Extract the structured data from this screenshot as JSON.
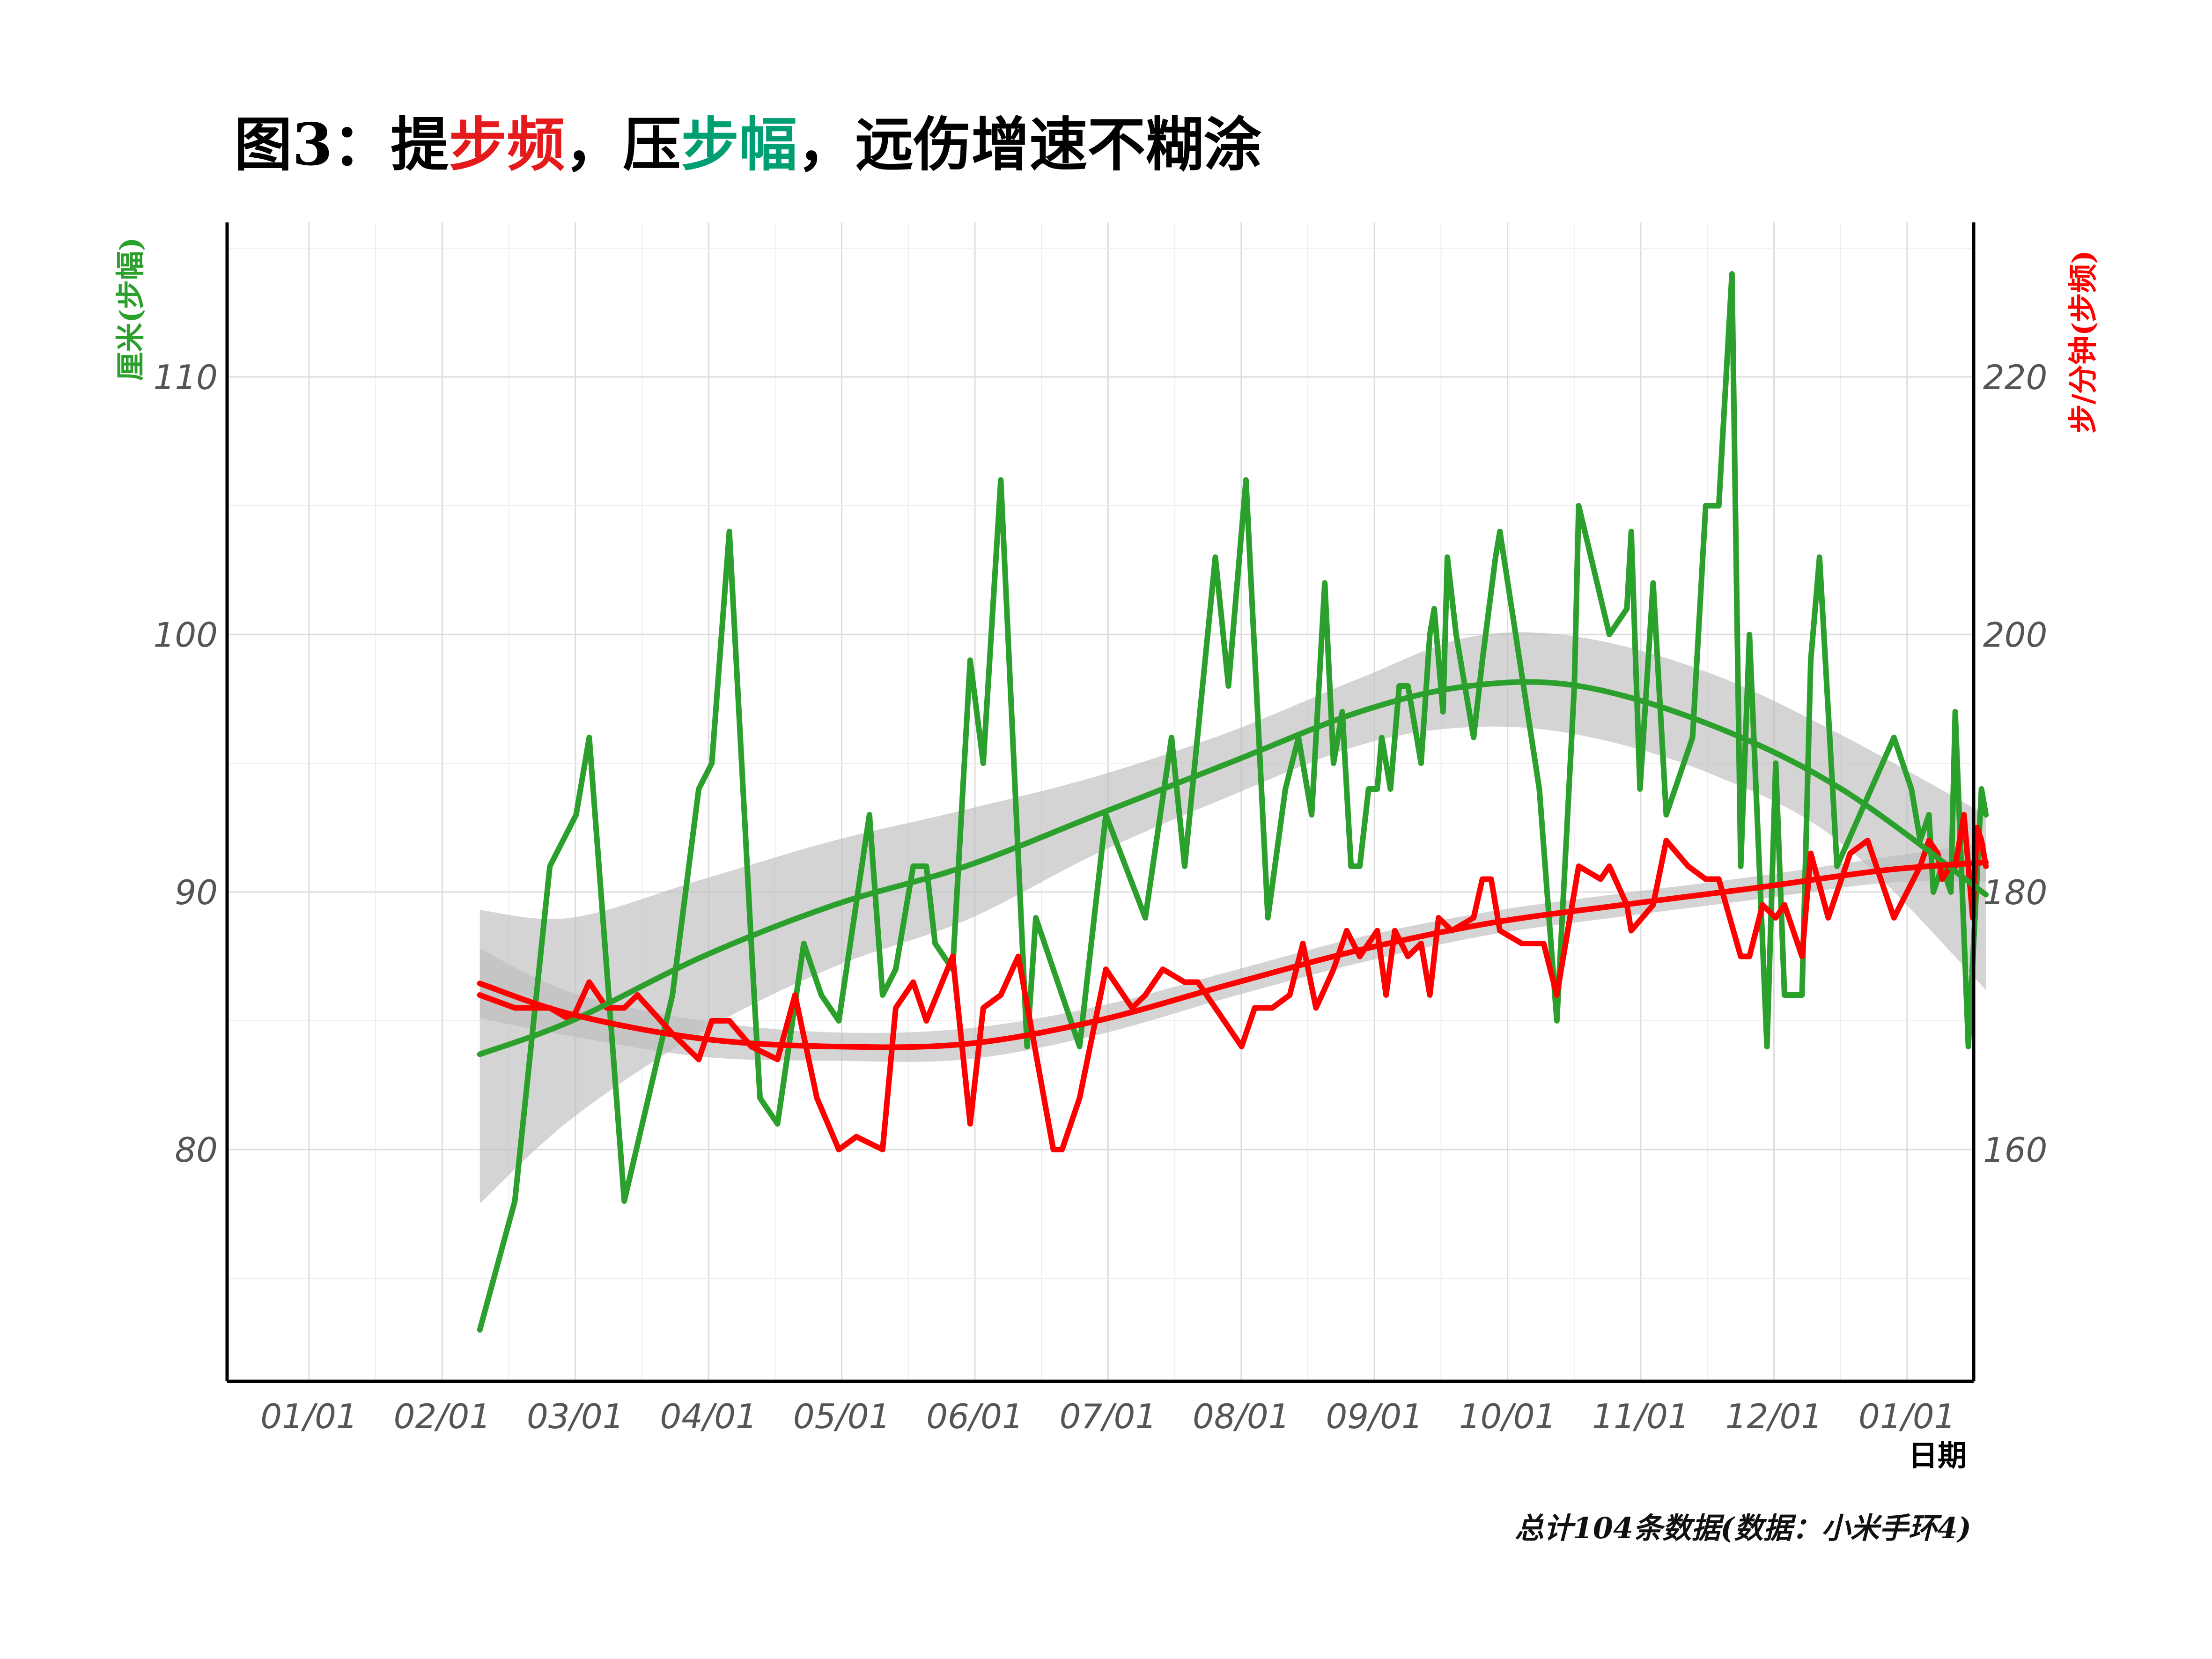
{
  "title": {
    "prefix": "图3：提",
    "freq_word": "步频",
    "mid": "，压",
    "stride_word": "步幅",
    "suffix": "，远伤增速不糊涂"
  },
  "caption": "总计104条数据(数据：小米手环4)",
  "colors": {
    "stride": "#2ca02c",
    "cadence": "#ff0000",
    "band": "#bdbdbd",
    "title_freq": "#e41a1c",
    "title_stride": "#009e73",
    "grid": "#dddddd",
    "axis": "#000000"
  },
  "chart_data": {
    "type": "line",
    "xlabel": "日期",
    "ylabel_left": "厘米(步幅)",
    "ylabel_right": "步/分钟(步频)",
    "x_ticks": [
      "01/01",
      "02/01",
      "03/01",
      "04/01",
      "05/01",
      "06/01",
      "07/01",
      "08/01",
      "09/01",
      "10/01",
      "11/01",
      "12/01",
      "01/01"
    ],
    "y_left": {
      "ticks": [
        80,
        90,
        100,
        110
      ],
      "range": [
        71,
        116
      ]
    },
    "y_right": {
      "ticks": [
        160,
        180,
        200,
        220
      ],
      "range": [
        142,
        232
      ]
    },
    "grid": true,
    "series": [
      {
        "name": "厘米(步幅)",
        "axis": "left",
        "points": [
          [
            39,
            73
          ],
          [
            47,
            78
          ],
          [
            55,
            91
          ],
          [
            61,
            93
          ],
          [
            64,
            96
          ],
          [
            68,
            87
          ],
          [
            72,
            78
          ],
          [
            83,
            86
          ],
          [
            89,
            94
          ],
          [
            92,
            95
          ],
          [
            96,
            104
          ],
          [
            101,
            88
          ],
          [
            103,
            82
          ],
          [
            107,
            81
          ],
          [
            113,
            88
          ],
          [
            117,
            86
          ],
          [
            121,
            85
          ],
          [
            128,
            93
          ],
          [
            131,
            86
          ],
          [
            134,
            87
          ],
          [
            138,
            91
          ],
          [
            141,
            91
          ],
          [
            143,
            88
          ],
          [
            147,
            87
          ],
          [
            151,
            99
          ],
          [
            154,
            95
          ],
          [
            158,
            106
          ],
          [
            164,
            84
          ],
          [
            166,
            89
          ],
          [
            172,
            86
          ],
          [
            176,
            84
          ],
          [
            182,
            93
          ],
          [
            191,
            89
          ],
          [
            197,
            96
          ],
          [
            200,
            91
          ],
          [
            207,
            103
          ],
          [
            210,
            98
          ],
          [
            214,
            106
          ],
          [
            219,
            89
          ],
          [
            223,
            94
          ],
          [
            226,
            96
          ],
          [
            229,
            93
          ],
          [
            232,
            102
          ],
          [
            234,
            95
          ],
          [
            236,
            97
          ],
          [
            238,
            91
          ],
          [
            240,
            91
          ],
          [
            242,
            94
          ],
          [
            244,
            94
          ],
          [
            245,
            96
          ],
          [
            247,
            94
          ],
          [
            249,
            98
          ],
          [
            251,
            98
          ],
          [
            254,
            95
          ],
          [
            256,
            100
          ],
          [
            257,
            101
          ],
          [
            259,
            97
          ],
          [
            260,
            103
          ],
          [
            262,
            100
          ],
          [
            266,
            96
          ],
          [
            268,
            99
          ],
          [
            271,
            103
          ],
          [
            272,
            104
          ],
          [
            281,
            94
          ],
          [
            285,
            85
          ],
          [
            289,
            98
          ],
          [
            290,
            105
          ],
          [
            297,
            100
          ],
          [
            301,
            101
          ],
          [
            302,
            104
          ],
          [
            304,
            94
          ],
          [
            307,
            102
          ],
          [
            310,
            93
          ],
          [
            316,
            96
          ],
          [
            319,
            105
          ],
          [
            322,
            105
          ],
          [
            325,
            114
          ],
          [
            327,
            91
          ],
          [
            329,
            100
          ],
          [
            333,
            84
          ],
          [
            335,
            95
          ],
          [
            337,
            86
          ],
          [
            341,
            86
          ],
          [
            343,
            99
          ],
          [
            345,
            103
          ],
          [
            349,
            91
          ],
          [
            362,
            96
          ],
          [
            366,
            94
          ],
          [
            368,
            92
          ],
          [
            370,
            93
          ],
          [
            371,
            90
          ],
          [
            373,
            91
          ],
          [
            375,
            90
          ],
          [
            376,
            97
          ],
          [
            379,
            84
          ],
          [
            382,
            94
          ],
          [
            383,
            93
          ]
        ],
        "trend": [
          [
            39,
            83.7
          ],
          [
            60,
            85.0
          ],
          [
            90,
            87.5
          ],
          [
            120,
            89.5
          ],
          [
            150,
            91.0
          ],
          [
            180,
            93.0
          ],
          [
            210,
            95.0
          ],
          [
            240,
            97.0
          ],
          [
            265,
            98.0
          ],
          [
            290,
            98.0
          ],
          [
            320,
            96.5
          ],
          [
            350,
            94.0
          ],
          [
            383,
            89.9
          ]
        ],
        "band_upper": [
          [
            39,
            89.3
          ],
          [
            60,
            89.0
          ],
          [
            90,
            90.5
          ],
          [
            120,
            92.0
          ],
          [
            150,
            93.2
          ],
          [
            180,
            94.5
          ],
          [
            210,
            96.2
          ],
          [
            240,
            98.3
          ],
          [
            265,
            99.9
          ],
          [
            290,
            99.9
          ],
          [
            320,
            98.5
          ],
          [
            350,
            96.1
          ],
          [
            383,
            93.0
          ]
        ],
        "band_lower": [
          [
            39,
            77.9
          ],
          [
            60,
            81.2
          ],
          [
            90,
            84.6
          ],
          [
            120,
            87.1
          ],
          [
            150,
            88.9
          ],
          [
            180,
            91.5
          ],
          [
            210,
            93.7
          ],
          [
            240,
            95.7
          ],
          [
            265,
            96.4
          ],
          [
            290,
            96.1
          ],
          [
            320,
            94.6
          ],
          [
            350,
            91.9
          ],
          [
            383,
            86.2
          ]
        ]
      },
      {
        "name": "步/分钟(步频)",
        "axis": "right",
        "points": [
          [
            39,
            172
          ],
          [
            47,
            171
          ],
          [
            55,
            171
          ],
          [
            60,
            170
          ],
          [
            64,
            173
          ],
          [
            68,
            171
          ],
          [
            72,
            171
          ],
          [
            75,
            172
          ],
          [
            83,
            169
          ],
          [
            89,
            167
          ],
          [
            92,
            170
          ],
          [
            96,
            170
          ],
          [
            101,
            168
          ],
          [
            107,
            167
          ],
          [
            111,
            172
          ],
          [
            116,
            164
          ],
          [
            121,
            160
          ],
          [
            125,
            161
          ],
          [
            131,
            160
          ],
          [
            134,
            171
          ],
          [
            138,
            173
          ],
          [
            141,
            170
          ],
          [
            147,
            175
          ],
          [
            151,
            162
          ],
          [
            154,
            171
          ],
          [
            158,
            172
          ],
          [
            162,
            175
          ],
          [
            170,
            160
          ],
          [
            172,
            160
          ],
          [
            176,
            164
          ],
          [
            182,
            174
          ],
          [
            188,
            171
          ],
          [
            191,
            172
          ],
          [
            195,
            174
          ],
          [
            200,
            173
          ],
          [
            203,
            173
          ],
          [
            213,
            168
          ],
          [
            216,
            171
          ],
          [
            220,
            171
          ],
          [
            224,
            172
          ],
          [
            227,
            176
          ],
          [
            230,
            171
          ],
          [
            234,
            174
          ],
          [
            237,
            177
          ],
          [
            240,
            175
          ],
          [
            244,
            177
          ],
          [
            246,
            172
          ],
          [
            248,
            177
          ],
          [
            251,
            175
          ],
          [
            254,
            176
          ],
          [
            256,
            172
          ],
          [
            258,
            178
          ],
          [
            261,
            177
          ],
          [
            266,
            178
          ],
          [
            268,
            181
          ],
          [
            270,
            181
          ],
          [
            272,
            177
          ],
          [
            277,
            176
          ],
          [
            282,
            176
          ],
          [
            285,
            172
          ],
          [
            290,
            182
          ],
          [
            295,
            181
          ],
          [
            297,
            182
          ],
          [
            301,
            179
          ],
          [
            302,
            177
          ],
          [
            307,
            179
          ],
          [
            310,
            184
          ],
          [
            315,
            182
          ],
          [
            319,
            181
          ],
          [
            322,
            181
          ],
          [
            327,
            175
          ],
          [
            329,
            175
          ],
          [
            332,
            179
          ],
          [
            335,
            178
          ],
          [
            337,
            179
          ],
          [
            341,
            175
          ],
          [
            343,
            183
          ],
          [
            347,
            178
          ],
          [
            352,
            183
          ],
          [
            356,
            184
          ],
          [
            362,
            178
          ],
          [
            368,
            182
          ],
          [
            370,
            184
          ],
          [
            372,
            183
          ],
          [
            373,
            181
          ],
          [
            375,
            182
          ],
          [
            376,
            182
          ],
          [
            378,
            186
          ],
          [
            380,
            178
          ],
          [
            381,
            185
          ],
          [
            382,
            184
          ],
          [
            383,
            182
          ]
        ],
        "trend": [
          [
            39,
            172.9
          ],
          [
            60,
            170.5
          ],
          [
            90,
            168.6
          ],
          [
            120,
            168.0
          ],
          [
            150,
            168.2
          ],
          [
            180,
            170.0
          ],
          [
            210,
            172.8
          ],
          [
            240,
            175.5
          ],
          [
            270,
            177.6
          ],
          [
            300,
            179.0
          ],
          [
            330,
            180.3
          ],
          [
            360,
            181.7
          ],
          [
            383,
            182.3
          ]
        ],
        "band_upper": [
          [
            39,
            175.6
          ],
          [
            60,
            172.2
          ],
          [
            90,
            170.0
          ],
          [
            120,
            169.1
          ],
          [
            150,
            169.4
          ],
          [
            180,
            171.1
          ],
          [
            210,
            173.8
          ],
          [
            240,
            176.5
          ],
          [
            270,
            178.5
          ],
          [
            300,
            179.9
          ],
          [
            330,
            181.2
          ],
          [
            360,
            182.7
          ],
          [
            383,
            183.8
          ]
        ],
        "band_lower": [
          [
            39,
            170.2
          ],
          [
            60,
            168.8
          ],
          [
            90,
            167.2
          ],
          [
            120,
            166.9
          ],
          [
            150,
            167.0
          ],
          [
            180,
            168.9
          ],
          [
            210,
            171.8
          ],
          [
            240,
            174.5
          ],
          [
            270,
            176.7
          ],
          [
            300,
            178.1
          ],
          [
            330,
            179.4
          ],
          [
            360,
            180.7
          ],
          [
            383,
            180.8
          ]
        ]
      }
    ]
  }
}
